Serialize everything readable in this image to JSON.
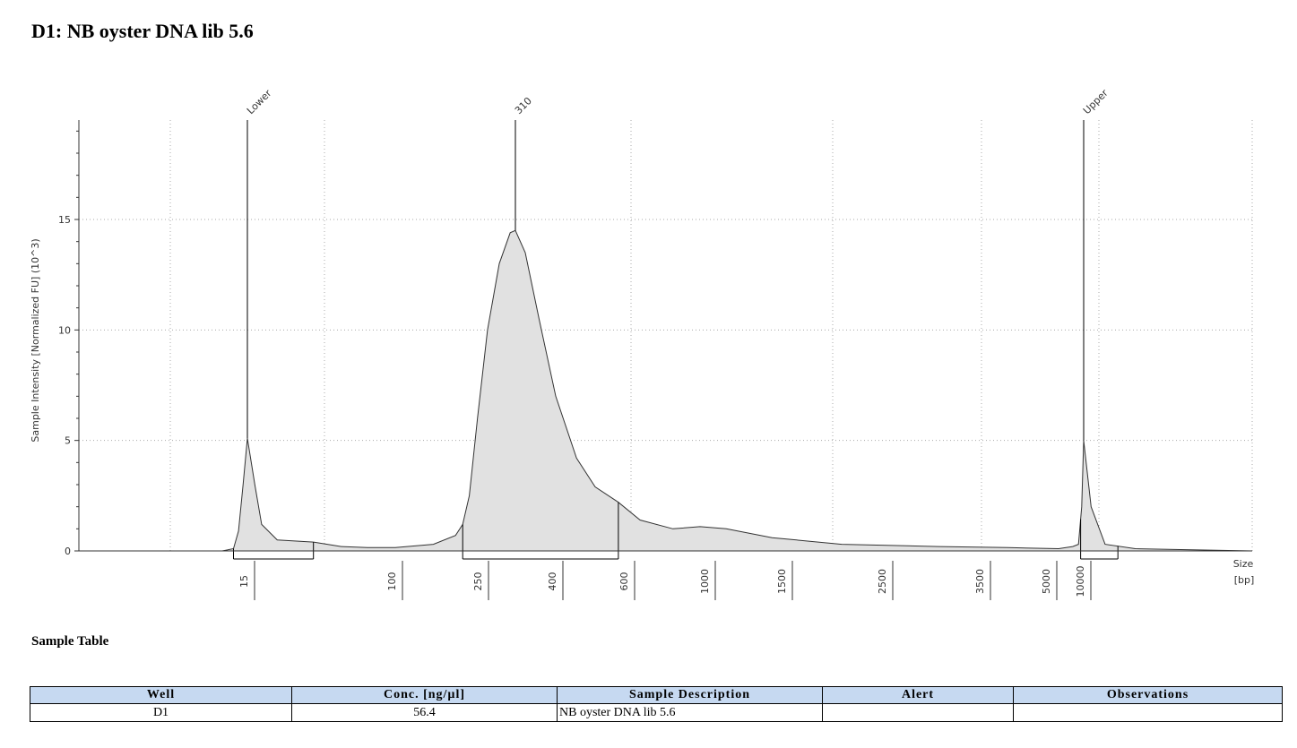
{
  "page": {
    "title": "D1: NB oyster DNA lib 5.6",
    "section_title": "Sample Table"
  },
  "chart_data": {
    "type": "area",
    "ylabel": "Sample Intensity [Normalized FU] (10^3)",
    "xlabel": "Size [bp]",
    "xlabel_lines": [
      "Size",
      "[bp]"
    ],
    "ylim": [
      0,
      19.5
    ],
    "y_ticks": [
      0,
      5,
      10,
      15
    ],
    "x_ticks": [
      "15",
      "100",
      "250",
      "400",
      "600",
      "1000",
      "1500",
      "2500",
      "3500",
      "5000",
      "10000"
    ],
    "fill_color": "#e1e1e1",
    "line_color": "#333333",
    "peaks": [
      {
        "label": "Lower",
        "size_bp": 15,
        "intensity": 5.1
      },
      {
        "label": "310",
        "size_bp": 310,
        "intensity": 14.5
      },
      {
        "label": "Upper",
        "size_bp": 10000,
        "intensity": 5.0
      }
    ],
    "regions": [
      {
        "from_bp": 12,
        "to_bp": 35
      },
      {
        "from_bp": 205,
        "to_bp": 570
      },
      {
        "from_bp": 9400,
        "to_bp": 12500
      }
    ],
    "series": [
      {
        "points": [
          [
            1,
            0.0
          ],
          [
            10,
            0.0
          ],
          [
            12,
            0.1
          ],
          [
            13,
            0.9
          ],
          [
            14,
            3.0
          ],
          [
            15,
            5.1
          ],
          [
            16.5,
            3.0
          ],
          [
            18,
            1.2
          ],
          [
            22,
            0.5
          ],
          [
            35,
            0.4
          ],
          [
            50,
            0.2
          ],
          [
            70,
            0.15
          ],
          [
            100,
            0.15
          ],
          [
            150,
            0.3
          ],
          [
            190,
            0.7
          ],
          [
            205,
            1.2
          ],
          [
            220,
            2.5
          ],
          [
            240,
            6.0
          ],
          [
            260,
            10.0
          ],
          [
            280,
            13.0
          ],
          [
            300,
            14.4
          ],
          [
            310,
            14.5
          ],
          [
            330,
            13.5
          ],
          [
            360,
            10.5
          ],
          [
            400,
            7.0
          ],
          [
            450,
            4.2
          ],
          [
            500,
            2.9
          ],
          [
            570,
            2.2
          ],
          [
            650,
            1.4
          ],
          [
            800,
            1.0
          ],
          [
            950,
            1.1
          ],
          [
            1100,
            1.0
          ],
          [
            1400,
            0.6
          ],
          [
            2000,
            0.3
          ],
          [
            3000,
            0.2
          ],
          [
            4000,
            0.15
          ],
          [
            6000,
            0.1
          ],
          [
            8000,
            0.2
          ],
          [
            9000,
            0.3
          ],
          [
            9600,
            2.0
          ],
          [
            10000,
            5.0
          ],
          [
            10500,
            2.0
          ],
          [
            11500,
            0.3
          ],
          [
            14000,
            0.1
          ],
          [
            30000,
            0.0
          ]
        ]
      }
    ]
  },
  "table": {
    "headers": [
      "Well",
      "Conc. [ng/µl]",
      "Sample Description",
      "Alert",
      "Observations"
    ],
    "rows": [
      {
        "well": "D1",
        "conc": "56.4",
        "description": "NB oyster DNA lib 5.6",
        "alert": "",
        "observations": ""
      }
    ]
  }
}
